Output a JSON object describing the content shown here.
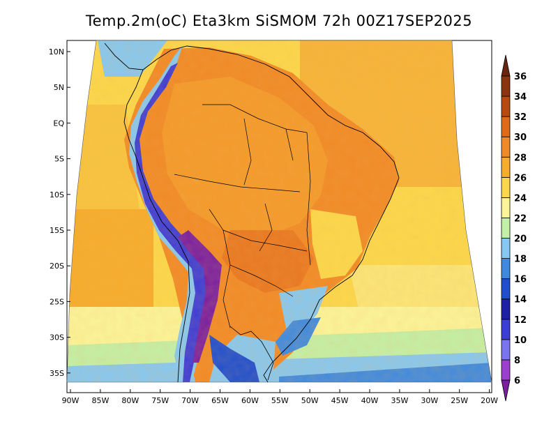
{
  "title": "Temp.2m(oC) Eta3km SiSMOM 72h 00Z17SEP2025",
  "map": {
    "lon_ticks": [
      "90W",
      "85W",
      "80W",
      "75W",
      "70W",
      "65W",
      "60W",
      "55W",
      "50W",
      "45W",
      "40W",
      "35W",
      "30W",
      "25W",
      "20W"
    ],
    "lat_ticks": [
      "10N",
      "5N",
      "EQ",
      "5S",
      "10S",
      "15S",
      "20S",
      "25S",
      "30S",
      "35S"
    ],
    "lon_range": [
      -91,
      -20
    ],
    "lat_range": [
      -38,
      11
    ],
    "field": "2 m air temperature",
    "units": "oC"
  },
  "colorbar": {
    "labels": [
      "6",
      "8",
      "10",
      "12",
      "14",
      "16",
      "18",
      "20",
      "22",
      "24",
      "26",
      "28",
      "30",
      "32",
      "34",
      "36"
    ],
    "colors": [
      "#7a1fa0",
      "#9a3fcf",
      "#7b74f0",
      "#3c3cd8",
      "#1f20a8",
      "#1f4fd0",
      "#3f8ae0",
      "#86c8f2",
      "#c3f0a8",
      "#fbf59a",
      "#fbd84b",
      "#f6ac2c",
      "#f08a28",
      "#e06a18",
      "#b84a10",
      "#8a3410",
      "#6a2510"
    ]
  },
  "chart_data": {
    "type": "heatmap",
    "title": "Temp.2m(oC) Eta3km SiSMOM 72h 00Z17SEP2025",
    "x_ticks": [
      "90W",
      "85W",
      "80W",
      "75W",
      "70W",
      "65W",
      "60W",
      "55W",
      "50W",
      "45W",
      "40W",
      "35W",
      "30W",
      "25W",
      "20W"
    ],
    "y_ticks": [
      "10N",
      "5N",
      "EQ",
      "5S",
      "10S",
      "15S",
      "20S",
      "25S",
      "30S",
      "35S"
    ],
    "colorbar_levels": [
      6,
      8,
      10,
      12,
      14,
      16,
      18,
      20,
      22,
      24,
      26,
      28,
      30,
      32,
      34,
      36
    ],
    "colorbar_unit": "oC"
  }
}
